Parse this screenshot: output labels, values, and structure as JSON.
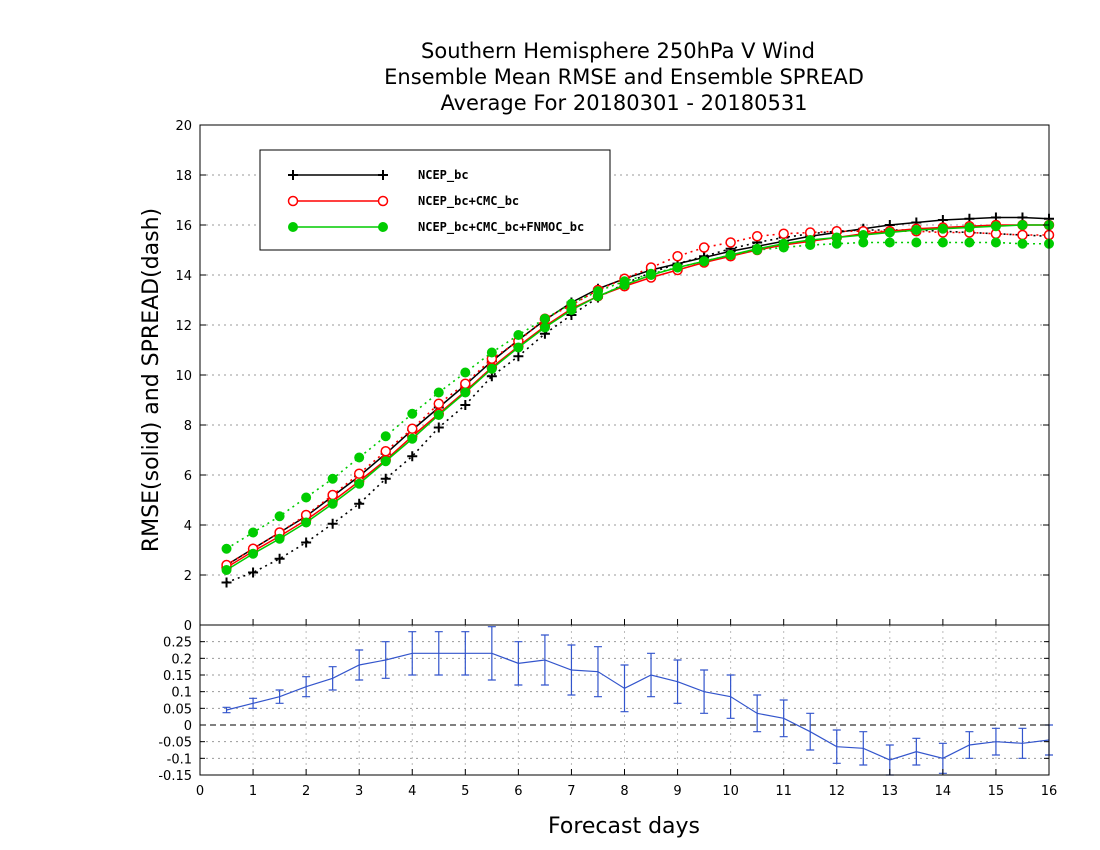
{
  "chart_data": [
    {
      "type": "line",
      "title": [
        "Southern Hemisphere 250hPa V Wind",
        "Ensemble Mean RMSE and Ensemble SPREAD",
        "Average For 20180301 - 20180531"
      ],
      "ylabel": "RMSE(solid) and SPREAD(dash)",
      "xlim": [
        0,
        16
      ],
      "ylim": [
        0,
        20
      ],
      "yticks": [
        0,
        2,
        4,
        6,
        8,
        10,
        12,
        14,
        16,
        18,
        20
      ],
      "grid": true,
      "legend_position": "top-left",
      "x": [
        0.5,
        1,
        1.5,
        2,
        2.5,
        3,
        3.5,
        4,
        4.5,
        5,
        5.5,
        6,
        6.5,
        7,
        7.5,
        8,
        8.5,
        9,
        9.5,
        10,
        10.5,
        11,
        11.5,
        12,
        12.5,
        13,
        13.5,
        14,
        14.5,
        15,
        15.5,
        16
      ],
      "series": [
        {
          "name": "NCEP_bc",
          "color": "#000000",
          "marker": "plus",
          "rmse": [
            2.4,
            3.05,
            3.7,
            4.35,
            5.15,
            5.95,
            6.85,
            7.8,
            8.7,
            9.6,
            10.55,
            11.4,
            12.2,
            12.9,
            13.45,
            13.85,
            14.2,
            14.45,
            14.7,
            14.95,
            15.15,
            15.35,
            15.55,
            15.7,
            15.85,
            16.0,
            16.1,
            16.2,
            16.25,
            16.3,
            16.3,
            16.25
          ],
          "spread": [
            1.7,
            2.1,
            2.65,
            3.3,
            4.05,
            4.85,
            5.85,
            6.75,
            7.9,
            8.8,
            9.95,
            10.75,
            11.65,
            12.4,
            13.1,
            13.65,
            14.1,
            14.45,
            14.75,
            15.05,
            15.3,
            15.5,
            15.65,
            15.75,
            15.8,
            15.8,
            15.8,
            15.75,
            15.7,
            15.65,
            15.6,
            15.55
          ]
        },
        {
          "name": "NCEP_bc+CMC_bc",
          "color": "#ff0000",
          "marker": "open-circle",
          "rmse": [
            2.3,
            2.95,
            3.55,
            4.2,
            4.95,
            5.75,
            6.6,
            7.55,
            8.45,
            9.35,
            10.3,
            11.15,
            11.95,
            12.65,
            13.15,
            13.55,
            13.9,
            14.2,
            14.5,
            14.75,
            15.0,
            15.2,
            15.35,
            15.5,
            15.65,
            15.75,
            15.85,
            15.9,
            15.95,
            16.0,
            16.0,
            16.0
          ],
          "spread": [
            2.4,
            3.05,
            3.7,
            4.4,
            5.2,
            6.05,
            6.95,
            7.85,
            8.85,
            9.65,
            10.65,
            11.35,
            12.25,
            12.8,
            13.4,
            13.85,
            14.3,
            14.75,
            15.1,
            15.3,
            15.55,
            15.65,
            15.7,
            15.75,
            15.75,
            15.75,
            15.75,
            15.7,
            15.7,
            15.65,
            15.6,
            15.6
          ]
        },
        {
          "name": "NCEP_bc+CMC_bc+FNMOC_bc",
          "color": "#00cc00",
          "marker": "filled-circle",
          "rmse": [
            2.2,
            2.85,
            3.45,
            4.1,
            4.85,
            5.65,
            6.55,
            7.45,
            8.4,
            9.3,
            10.25,
            11.1,
            11.9,
            12.6,
            13.15,
            13.6,
            14.0,
            14.3,
            14.55,
            14.8,
            15.05,
            15.25,
            15.4,
            15.5,
            15.6,
            15.7,
            15.8,
            15.85,
            15.9,
            15.95,
            16.0,
            16.0
          ],
          "spread": [
            3.05,
            3.7,
            4.35,
            5.1,
            5.85,
            6.7,
            7.55,
            8.45,
            9.3,
            10.1,
            10.9,
            11.6,
            12.25,
            12.85,
            13.35,
            13.75,
            14.05,
            14.3,
            14.55,
            14.8,
            15.0,
            15.1,
            15.2,
            15.25,
            15.3,
            15.3,
            15.3,
            15.3,
            15.3,
            15.3,
            15.25,
            15.25
          ]
        }
      ]
    },
    {
      "type": "line",
      "xlabel": "Forecast days",
      "xlim": [
        0,
        16
      ],
      "ylim": [
        -0.15,
        0.3
      ],
      "yticks": [
        -0.15,
        -0.1,
        -0.05,
        0,
        0.05,
        0.1,
        0.15,
        0.2,
        0.25
      ],
      "xticks": [
        0,
        1,
        2,
        3,
        4,
        5,
        6,
        7,
        8,
        9,
        10,
        11,
        12,
        13,
        14,
        15,
        16
      ],
      "grid": true,
      "x": [
        0.5,
        1,
        1.5,
        2,
        2.5,
        3,
        3.5,
        4,
        4.5,
        5,
        5.5,
        6,
        6.5,
        7,
        7.5,
        8,
        8.5,
        9,
        9.5,
        10,
        10.5,
        11,
        11.5,
        12,
        12.5,
        13,
        13.5,
        14,
        14.5,
        15,
        15.5,
        16
      ],
      "series": [
        {
          "color": "#3355cc",
          "values": [
            0.045,
            0.065,
            0.085,
            0.115,
            0.14,
            0.18,
            0.195,
            0.215,
            0.215,
            0.215,
            0.215,
            0.185,
            0.195,
            0.165,
            0.16,
            0.11,
            0.15,
            0.13,
            0.1,
            0.085,
            0.035,
            0.02,
            -0.02,
            -0.065,
            -0.07,
            -0.105,
            -0.08,
            -0.1,
            -0.06,
            -0.05,
            -0.055,
            -0.045
          ],
          "error": [
            0.008,
            0.015,
            0.02,
            0.03,
            0.035,
            0.045,
            0.055,
            0.065,
            0.065,
            0.065,
            0.08,
            0.065,
            0.075,
            0.075,
            0.075,
            0.07,
            0.065,
            0.065,
            0.065,
            0.065,
            0.055,
            0.055,
            0.055,
            0.05,
            0.05,
            0.045,
            0.04,
            0.045,
            0.04,
            0.04,
            0.045,
            0.045
          ]
        }
      ]
    }
  ]
}
